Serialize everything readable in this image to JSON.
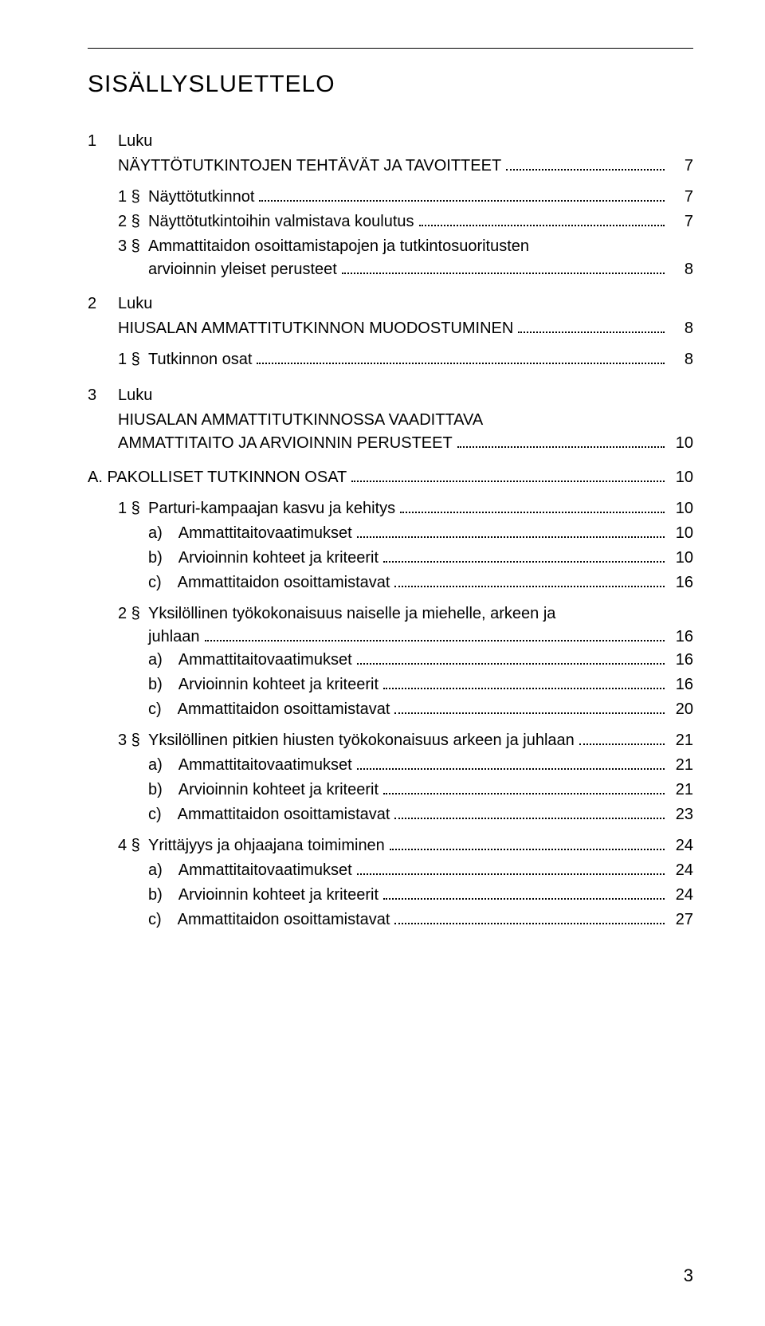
{
  "title": "SISÄLLYSLUETTELO",
  "page_number": "3",
  "colors": {
    "text": "#000000",
    "bg": "#ffffff",
    "rule": "#000000",
    "leader": "#000000"
  },
  "typography": {
    "title_fontsize": 30,
    "body_fontsize": 20,
    "font_family": "Arial"
  },
  "c1": {
    "num": "1",
    "name": "Luku",
    "heading": "NÄYTTÖTUTKINTOJEN TEHTÄVÄT JA TAVOITTEET",
    "page": "7"
  },
  "c1s1": {
    "num": "1 §",
    "label": "Näyttötutkinnot",
    "page": "7"
  },
  "c1s2": {
    "num": "2 §",
    "label": "Näyttötutkintoihin valmistava koulutus",
    "page": "7"
  },
  "c1s3": {
    "num": "3 §",
    "line1": "Ammattitaidon osoittamistapojen ja tutkintosuoritusten",
    "line2": "arvioinnin yleiset perusteet",
    "page": "8"
  },
  "c2": {
    "num": "2",
    "name": "Luku",
    "heading": "HIUSALAN AMMATTITUTKINNON MUODOSTUMINEN",
    "page": "8"
  },
  "c2s1": {
    "num": "1 §",
    "label": "Tutkinnon osat",
    "page": "8"
  },
  "c3": {
    "num": "3",
    "name": "Luku",
    "line1": "HIUSALAN AMMATTITUTKINNOSSA VAADITTAVA",
    "line2": "AMMATTITAITO JA ARVIOINNIN PERUSTEET",
    "page": "10"
  },
  "secA": {
    "label": "A. PAKOLLISET TUTKINNON OSAT",
    "page": "10"
  },
  "s1": {
    "num": "1 §",
    "label": "Parturi-kampaajan kasvu ja kehitys",
    "page": "10",
    "a": {
      "label": "a) Ammattitaitovaatimukset",
      "page": "10"
    },
    "b": {
      "label": "b) Arvioinnin kohteet ja kriteerit",
      "page": "10"
    },
    "c": {
      "label": "c) Ammattitaidon osoittamistavat",
      "page": "16"
    }
  },
  "s2": {
    "num": "2 §",
    "line1": "Yksilöllinen työkokonaisuus naiselle ja miehelle, arkeen ja",
    "line2": "juhlaan",
    "page": "16",
    "a": {
      "label": "a) Ammattitaitovaatimukset",
      "page": "16"
    },
    "b": {
      "label": "b) Arvioinnin kohteet ja kriteerit",
      "page": "16"
    },
    "c": {
      "label": "c) Ammattitaidon osoittamistavat",
      "page": "20"
    }
  },
  "s3": {
    "num": "3 §",
    "label": "Yksilöllinen pitkien hiusten työkokonaisuus arkeen ja juhlaan",
    "page": "21",
    "a": {
      "label": "a) Ammattitaitovaatimukset",
      "page": "21"
    },
    "b": {
      "label": "b) Arvioinnin kohteet ja kriteerit",
      "page": "21"
    },
    "c": {
      "label": "c) Ammattitaidon osoittamistavat",
      "page": "23"
    }
  },
  "s4": {
    "num": "4 §",
    "label": "Yrittäjyys ja ohjaajana toimiminen",
    "page": "24",
    "a": {
      "label": "a) Ammattitaitovaatimukset",
      "page": "24"
    },
    "b": {
      "label": "b) Arvioinnin kohteet ja kriteerit",
      "page": "24"
    },
    "c": {
      "label": "c) Ammattitaidon osoittamistavat",
      "page": "27"
    }
  }
}
